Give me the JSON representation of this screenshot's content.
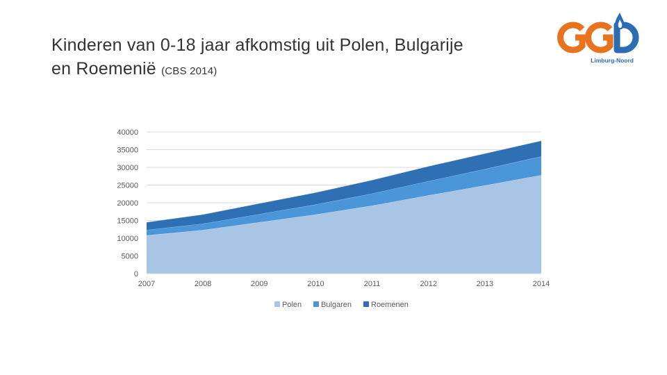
{
  "slide": {
    "title_line1": "Kinderen van 0-18 jaar afkomstig uit Polen, Bulgarije",
    "title_line2": "en Roemenië",
    "source_note": "(CBS 2014)"
  },
  "logo": {
    "text": "GGD",
    "subtext": "Limburg-Noord",
    "colors": {
      "orange": "#e8741f",
      "blue": "#2b6cb3"
    }
  },
  "chart_data": {
    "type": "area",
    "stacked": true,
    "x": [
      "2007",
      "2008",
      "2009",
      "2010",
      "2011",
      "2012",
      "2013",
      "2014"
    ],
    "series": [
      {
        "name": "Polen",
        "color": "#a9c5e6",
        "values": [
          10800,
          12300,
          14500,
          16700,
          19200,
          22100,
          24900,
          27800
        ]
      },
      {
        "name": "Bulgaren",
        "color": "#4a96d9",
        "values": [
          1500,
          1800,
          2300,
          2800,
          3400,
          4000,
          4600,
          5300
        ]
      },
      {
        "name": "Roemenen",
        "color": "#2f6fb4",
        "values": [
          2200,
          2600,
          3000,
          3400,
          3800,
          4200,
          4400,
          4400
        ]
      }
    ],
    "y_ticks": [
      "0",
      "5000",
      "10000",
      "15000",
      "20000",
      "25000",
      "30000",
      "35000",
      "40000"
    ],
    "ylim": [
      0,
      40000
    ],
    "grid": true,
    "legend_position": "bottom"
  }
}
